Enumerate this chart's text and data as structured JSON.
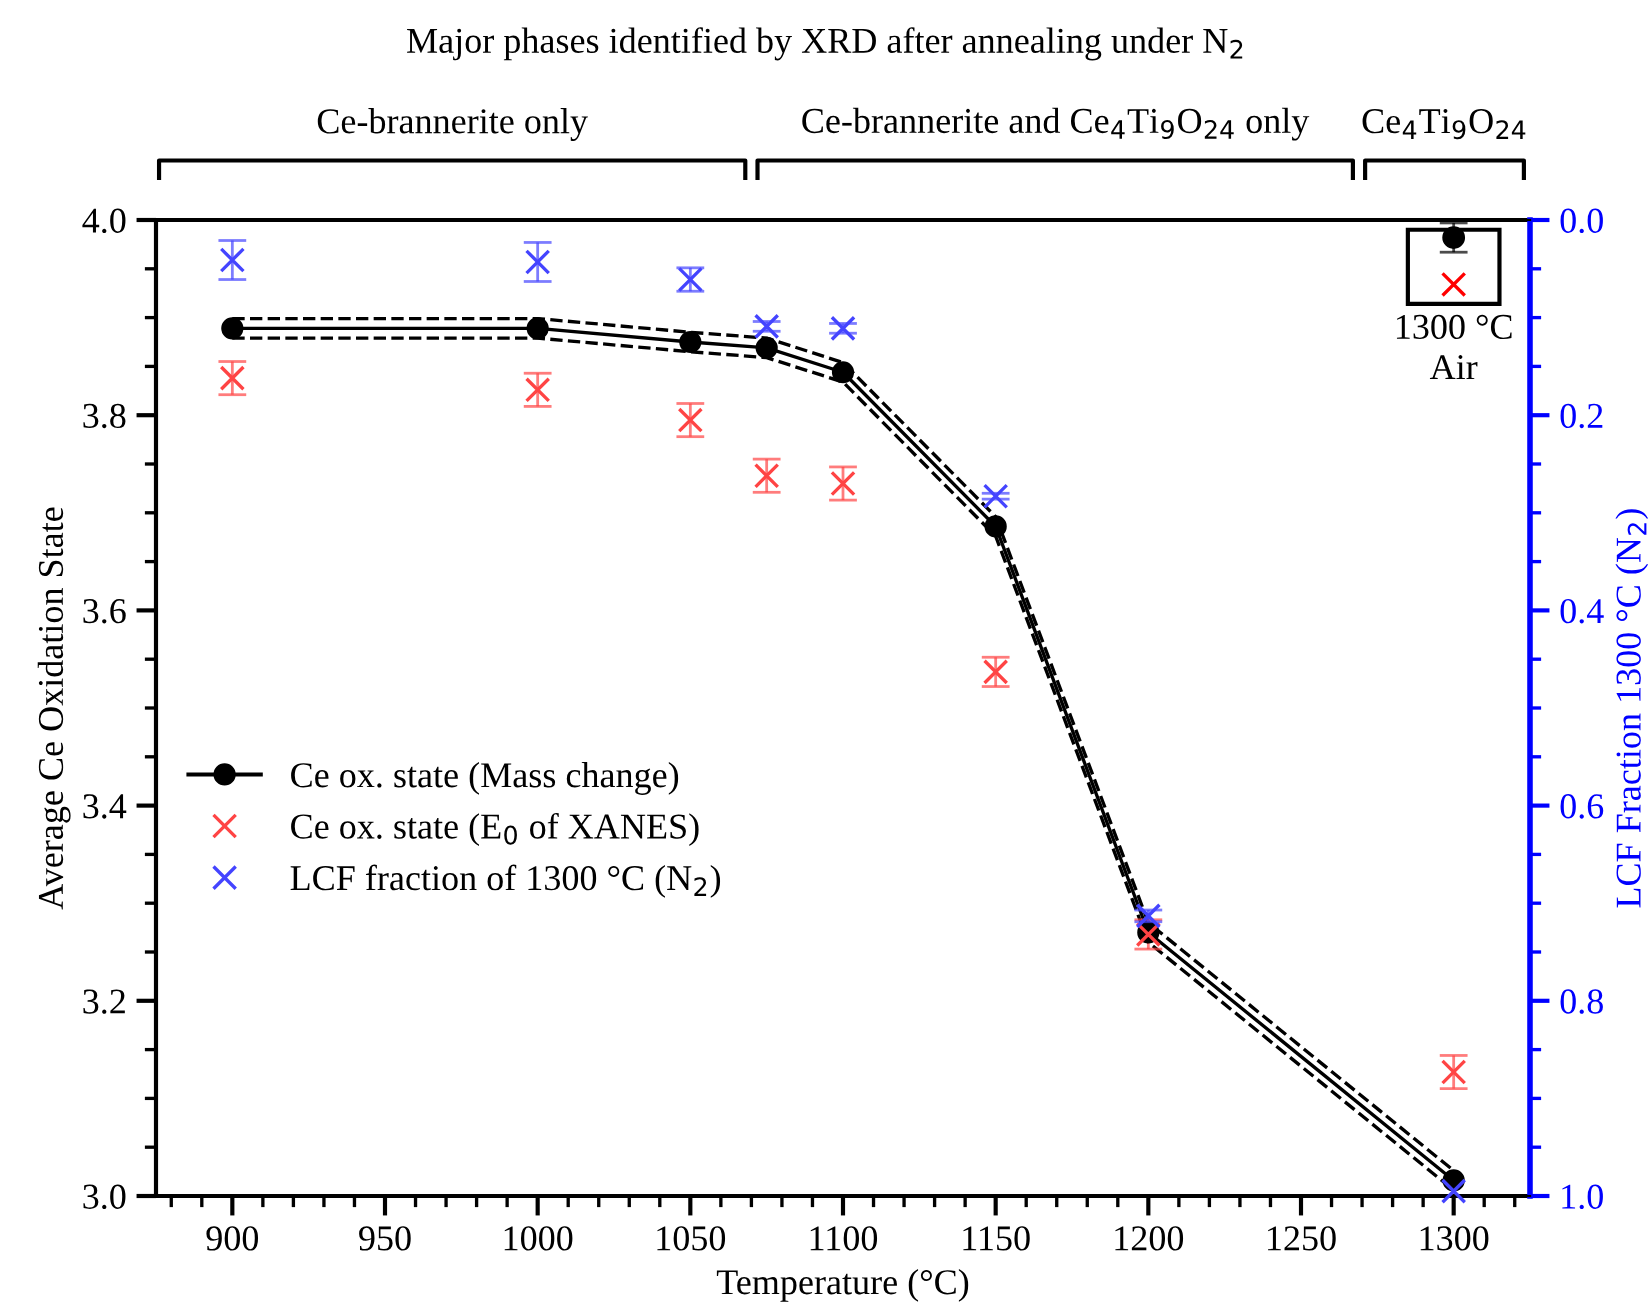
{
  "chart_data": {
    "type": "line",
    "title": "Major phases identified by XRD after annealing under N$_{2}$",
    "xlabel": "Temperature (°C)",
    "ylabel": "Average Ce Oxidation State",
    "y2label": "LCF Fraction 1300 °C (N$_{2}$)",
    "xlim": [
      875,
      1325
    ],
    "xticks": [
      900,
      950,
      1000,
      1050,
      1100,
      1150,
      1200,
      1250,
      1300
    ],
    "ylim": [
      3.0,
      4.0
    ],
    "yticks": [
      {
        "value": 3.0,
        "label": "3.0"
      },
      {
        "value": 3.2,
        "label": "3.2"
      },
      {
        "value": 3.4,
        "label": "3.4"
      },
      {
        "value": 3.6,
        "label": "3.6"
      },
      {
        "value": 3.8,
        "label": "3.8"
      },
      {
        "value": 4.0,
        "label": "4.0"
      }
    ],
    "y2lim": [
      1.0,
      0.0
    ],
    "y2ticks": [
      {
        "value": 0.0,
        "label": "0.0"
      },
      {
        "value": 0.2,
        "label": "0.2"
      },
      {
        "value": 0.4,
        "label": "0.4"
      },
      {
        "value": 0.6,
        "label": "0.6"
      },
      {
        "value": 0.8,
        "label": "0.8"
      },
      {
        "value": 1.0,
        "label": "1.0"
      }
    ],
    "grid": false,
    "legend": "center left",
    "series": [
      {
        "name": "Ce ox. state (Mass change)",
        "color": "#000000",
        "marker": "circle",
        "line_style": "solid",
        "x": [
          900,
          1000,
          1050,
          1075,
          1100,
          1150,
          1200,
          1300
        ],
        "values": [
          3.889,
          3.889,
          3.875,
          3.869,
          3.844,
          3.686,
          3.27,
          3.016
        ]
      },
      {
        "color": "#000000",
        "marker": "none",
        "line_style": "dashed",
        "x": [
          900,
          1000,
          1050,
          1075,
          1100,
          1150,
          1200,
          1300
        ],
        "values": [
          3.899,
          3.899,
          3.885,
          3.879,
          3.854,
          3.696,
          3.28,
          3.026
        ]
      },
      {
        "color": "#000000",
        "marker": "none",
        "line_style": "dashed",
        "x": [
          900,
          1000,
          1050,
          1075,
          1100,
          1150,
          1200,
          1300
        ],
        "values": [
          3.879,
          3.879,
          3.865,
          3.859,
          3.834,
          3.676,
          3.26,
          3.006
        ]
      },
      {
        "name": "Ce ox. state (E$_{0}$ of XANES)",
        "type": "scatter",
        "color": "#ff4444",
        "marker": "cross",
        "x": [
          900,
          1000,
          1050,
          1075,
          1100,
          1150,
          1200,
          1300
        ],
        "values": [
          3.838,
          3.826,
          3.795,
          3.738,
          3.73,
          3.537,
          3.268,
          3.127
        ],
        "errors": [
          0.017,
          0.017,
          0.017,
          0.017,
          0.017,
          0.015,
          0.015,
          0.017
        ]
      },
      {
        "name": "LCF fraction of 1300 °C (N$_{2}$)",
        "type": "scatter",
        "axis": "y2",
        "color": "#4444ff",
        "marker": "cross",
        "x": [
          900,
          1000,
          1050,
          1075,
          1100,
          1150,
          1200,
          1300
        ],
        "values": [
          0.041,
          0.043,
          0.061,
          0.109,
          0.111,
          0.283,
          0.713,
          0.995
        ],
        "errors": [
          0.02,
          0.02,
          0.012,
          0.005,
          0.005,
          0.003,
          0.006,
          null
        ]
      },
      {
        "type": "scatter",
        "color": "#000000",
        "marker": "circle",
        "x": [
          1300
        ],
        "values": [
          3.982
        ],
        "errors": [
          0.015
        ]
      },
      {
        "type": "scatter",
        "color": "#ff0000",
        "marker": "cross",
        "x": [
          1300
        ],
        "values": [
          3.934
        ]
      }
    ],
    "annotations": [
      "Ce-brannerite only",
      "Ce-brannerite and Ce$_{4}$Ti$_{9}$O$_{24}$ only",
      "Ce$_{4}$Ti$_{9}$O$_{24}$",
      {
        "text": "1300 °C\nAir",
        "x": 1300,
        "y": 3.934
      }
    ]
  }
}
